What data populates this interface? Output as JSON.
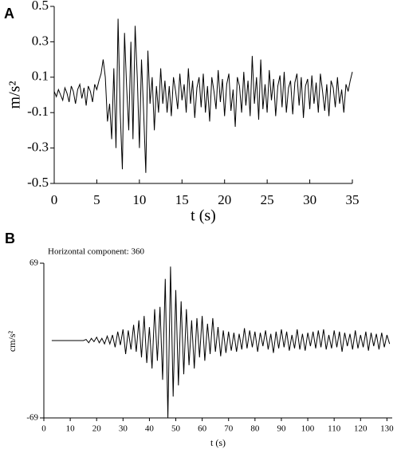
{
  "chart_data": [
    {
      "type": "line",
      "panel": "A",
      "ylabel": "m/s²",
      "xlabel": "t (s)",
      "color": "#000000",
      "xlim": [
        0,
        35
      ],
      "xticks": [
        0,
        5,
        10,
        15,
        20,
        25,
        30,
        35
      ],
      "ylim": [
        -0.5,
        0.5
      ],
      "yticks": [
        0.5,
        0.3,
        0.1,
        -0.1,
        -0.3,
        -0.5
      ],
      "x": [
        0,
        0.25,
        0.5,
        0.75,
        1,
        1.25,
        1.5,
        1.75,
        2,
        2.25,
        2.5,
        2.75,
        3,
        3.25,
        3.5,
        3.75,
        4,
        4.25,
        4.5,
        4.75,
        5,
        5.25,
        5.5,
        5.75,
        6,
        6.25,
        6.5,
        6.75,
        7,
        7.25,
        7.5,
        7.75,
        8,
        8.25,
        8.5,
        8.75,
        9,
        9.25,
        9.5,
        9.75,
        10,
        10.25,
        10.5,
        10.75,
        11,
        11.25,
        11.5,
        11.75,
        12,
        12.25,
        12.5,
        12.75,
        13,
        13.25,
        13.5,
        13.75,
        14,
        14.25,
        14.5,
        14.75,
        15,
        15.25,
        15.5,
        15.75,
        16,
        16.25,
        16.5,
        16.75,
        17,
        17.25,
        17.5,
        17.75,
        18,
        18.25,
        18.5,
        18.75,
        19,
        19.25,
        19.5,
        19.75,
        20,
        20.25,
        20.5,
        20.75,
        21,
        21.25,
        21.5,
        21.75,
        22,
        22.25,
        22.5,
        22.75,
        23,
        23.25,
        23.5,
        23.75,
        24,
        24.25,
        24.5,
        24.75,
        25,
        25.25,
        25.5,
        25.75,
        26,
        26.25,
        26.5,
        26.75,
        27,
        27.25,
        27.5,
        27.75,
        28,
        28.25,
        28.5,
        28.75,
        29,
        29.25,
        29.5,
        29.75,
        30,
        30.25,
        30.5,
        30.75,
        31,
        31.25,
        31.5,
        31.75,
        32,
        32.25,
        32.5,
        32.75,
        33,
        33.25,
        33.5,
        33.75,
        34,
        34.25,
        34.5,
        34.75,
        35
      ],
      "values": [
        0.02,
        -0.01,
        0.03,
        0.0,
        -0.03,
        0.04,
        0.01,
        -0.04,
        0.05,
        0.02,
        -0.05,
        0.03,
        0.06,
        -0.02,
        0.04,
        -0.06,
        0.05,
        0.02,
        -0.04,
        0.06,
        0.03,
        0.08,
        0.12,
        0.2,
        0.1,
        -0.15,
        -0.05,
        -0.25,
        0.15,
        -0.3,
        0.43,
        -0.1,
        -0.42,
        0.35,
        0.05,
        -0.2,
        0.3,
        -0.25,
        0.39,
        0.1,
        -0.3,
        0.2,
        -0.1,
        -0.44,
        0.25,
        -0.05,
        0.1,
        -0.2,
        0.05,
        -0.1,
        0.15,
        -0.05,
        0.08,
        -0.1,
        0.05,
        -0.12,
        0.1,
        0.02,
        -0.08,
        0.12,
        -0.03,
        0.06,
        -0.1,
        0.15,
        -0.05,
        0.08,
        -0.13,
        0.04,
        0.1,
        -0.07,
        0.12,
        -0.1,
        0.05,
        -0.15,
        0.1,
        0.02,
        -0.08,
        0.14,
        -0.04,
        0.09,
        -0.12,
        0.06,
        0.12,
        -0.09,
        0.03,
        -0.18,
        0.1,
        0.05,
        -0.1,
        0.13,
        -0.06,
        0.08,
        -0.12,
        0.22,
        -0.05,
        0.1,
        -0.14,
        0.2,
        -0.08,
        0.06,
        -0.1,
        0.14,
        -0.03,
        0.09,
        -0.12,
        0.05,
        0.11,
        -0.07,
        0.13,
        -0.1,
        0.04,
        0.08,
        -0.11,
        0.07,
        0.12,
        -0.06,
        0.1,
        -0.13,
        0.05,
        0.09,
        -0.08,
        0.11,
        -0.05,
        0.07,
        -0.1,
        0.12,
        0.02,
        -0.09,
        0.06,
        -0.12,
        0.08,
        0.04,
        -0.07,
        0.1,
        -0.05,
        0.03,
        -0.1,
        0.06,
        0.02,
        0.08,
        0.13
      ]
    },
    {
      "type": "line",
      "panel": "B",
      "title": "Horizontal component: 360",
      "ylabel": "cm/s²",
      "xlabel": "t (s)",
      "color": "#000000",
      "xlim": [
        0,
        132
      ],
      "xticks": [
        0,
        10,
        20,
        30,
        40,
        50,
        60,
        70,
        80,
        90,
        100,
        110,
        120,
        130
      ],
      "ylim": [
        -69,
        69
      ],
      "yticks": [
        69,
        -69
      ],
      "x": [
        3,
        4,
        5,
        6,
        7,
        8,
        9,
        10,
        11,
        12,
        13,
        14,
        15,
        16,
        17,
        18,
        19,
        20,
        21,
        22,
        23,
        24,
        25,
        26,
        27,
        28,
        29,
        30,
        31,
        32,
        33,
        34,
        35,
        36,
        37,
        38,
        39,
        40,
        41,
        42,
        43,
        44,
        45,
        46,
        47,
        48,
        49,
        50,
        51,
        52,
        53,
        54,
        55,
        56,
        57,
        58,
        59,
        60,
        61,
        62,
        63,
        64,
        65,
        66,
        67,
        68,
        69,
        70,
        71,
        72,
        73,
        74,
        75,
        76,
        77,
        78,
        79,
        80,
        81,
        82,
        83,
        84,
        85,
        86,
        87,
        88,
        89,
        90,
        91,
        92,
        93,
        94,
        95,
        96,
        97,
        98,
        99,
        100,
        101,
        102,
        103,
        104,
        105,
        106,
        107,
        108,
        109,
        110,
        111,
        112,
        113,
        114,
        115,
        116,
        117,
        118,
        119,
        120,
        121,
        122,
        123,
        124,
        125,
        126,
        127,
        128,
        129,
        130,
        131
      ],
      "values": [
        0,
        0,
        0,
        0,
        0,
        0,
        0,
        0,
        0,
        0,
        0,
        0,
        0,
        1,
        -2,
        2,
        -1,
        3,
        -2,
        2,
        -3,
        4,
        -3,
        5,
        -6,
        8,
        -4,
        10,
        -12,
        9,
        -8,
        14,
        -10,
        18,
        -15,
        22,
        -20,
        12,
        -25,
        28,
        -18,
        30,
        -35,
        55,
        -69,
        66,
        -50,
        45,
        -40,
        35,
        -30,
        28,
        -22,
        18,
        -25,
        20,
        -15,
        22,
        -18,
        15,
        -12,
        20,
        -10,
        12,
        -14,
        9,
        -11,
        8,
        -9,
        7,
        -10,
        6,
        -8,
        11,
        -7,
        9,
        -6,
        8,
        -10,
        7,
        -5,
        9,
        -8,
        6,
        -11,
        8,
        -7,
        10,
        -6,
        8,
        -9,
        5,
        -7,
        10,
        -8,
        6,
        -9,
        7,
        -5,
        8,
        -7,
        9,
        -6,
        10,
        -8,
        5,
        -7,
        9,
        -6,
        8,
        -10,
        7,
        -5,
        6,
        -8,
        9,
        -7,
        5,
        -6,
        8,
        -9,
        7,
        -5,
        6,
        -8,
        7,
        -6,
        5,
        -3
      ]
    }
  ]
}
